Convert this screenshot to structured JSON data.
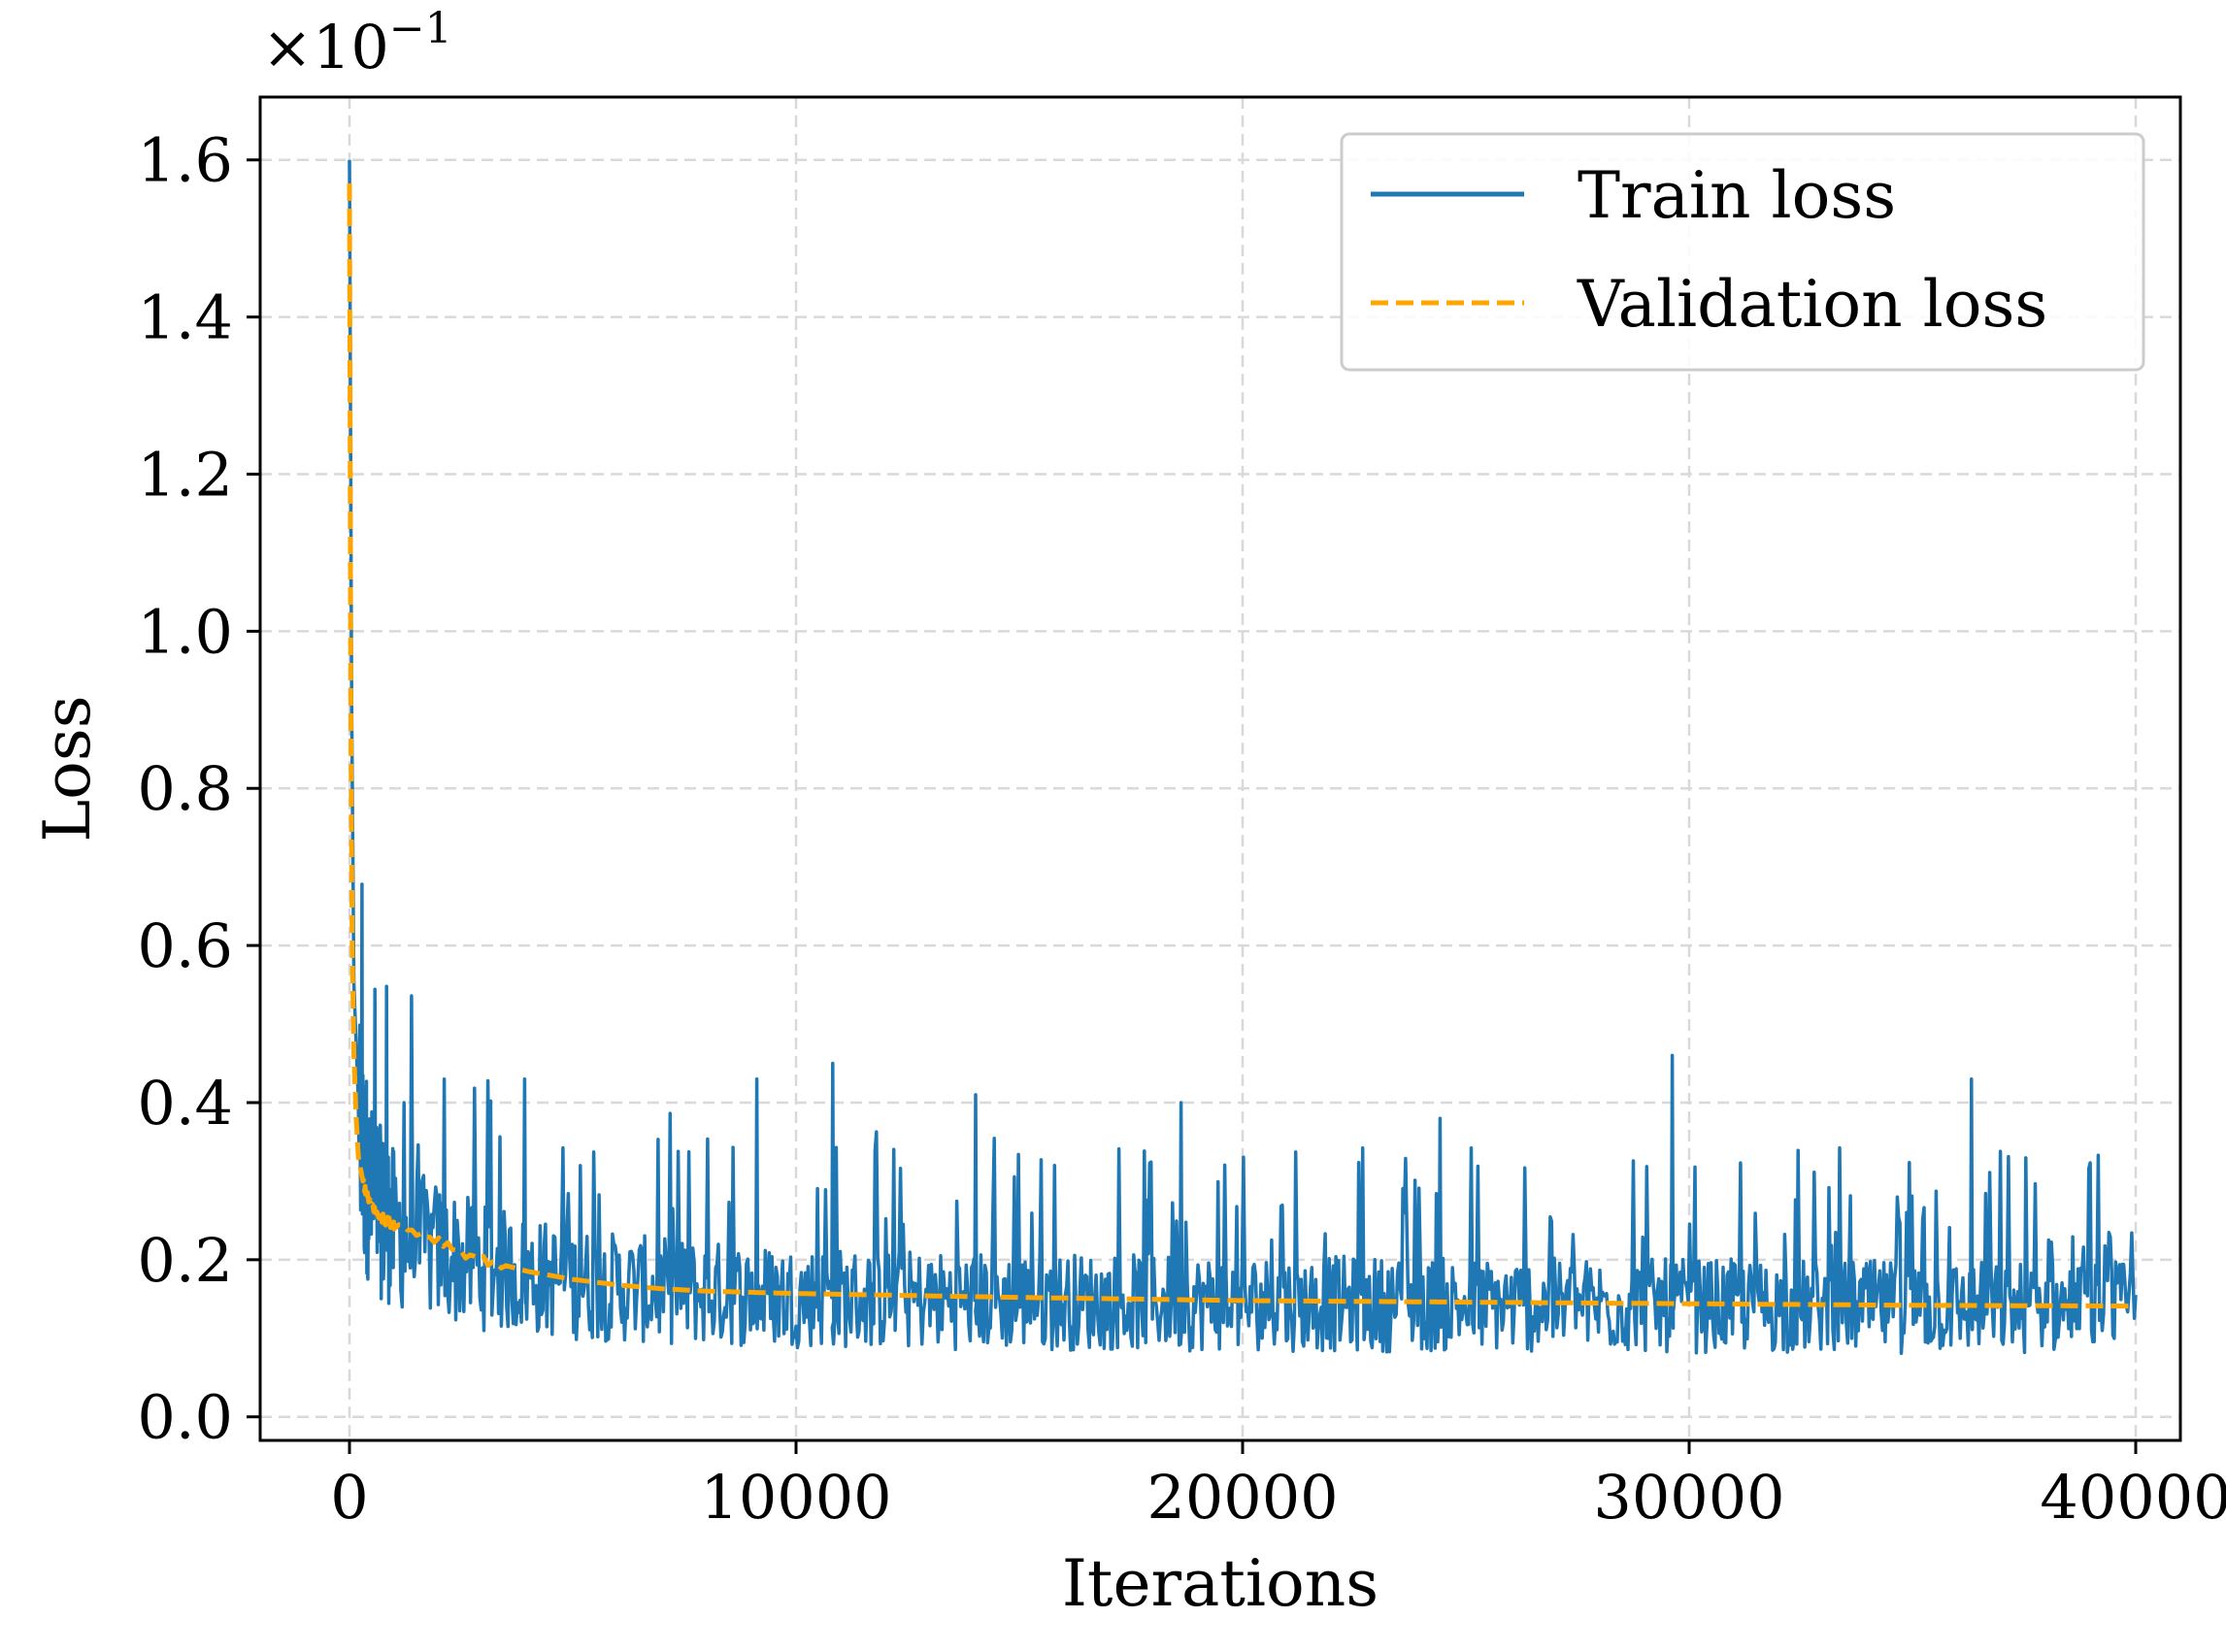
{
  "chart_data": {
    "type": "line",
    "title": "",
    "xlabel": "Iterations",
    "ylabel": "Loss",
    "scale_label": "×10",
    "scale_exponent": "−1",
    "xlim": [
      -2000,
      41000
    ],
    "ylim": [
      -0.03,
      1.68
    ],
    "x_ticks": [
      0,
      10000,
      20000,
      30000,
      40000
    ],
    "x_tick_labels": [
      "0",
      "10000",
      "20000",
      "30000",
      "40000"
    ],
    "y_ticks": [
      0.0,
      0.2,
      0.4,
      0.6,
      0.8,
      1.0,
      1.2,
      1.4,
      1.6
    ],
    "y_tick_labels": [
      "0.0",
      "0.2",
      "0.4",
      "0.6",
      "0.8",
      "1.0",
      "1.2",
      "1.4",
      "1.6"
    ],
    "grid": true,
    "legend_position": "top-right",
    "series": [
      {
        "name": "Train loss",
        "color": "#1f77b4",
        "style": "solid",
        "x": [
          0,
          50,
          100,
          200,
          300,
          500,
          700,
          1000,
          1500,
          2000,
          2500,
          3000,
          4000,
          5000,
          6000,
          7000,
          8000,
          9000,
          10000,
          12000,
          14000,
          16000,
          18000,
          20000,
          22000,
          24000,
          26000,
          28000,
          30000,
          32000,
          34000,
          36000,
          38000,
          40000
        ],
        "values": [
          1.6,
          0.9,
          0.55,
          0.4,
          0.33,
          0.28,
          0.26,
          0.24,
          0.22,
          0.21,
          0.2,
          0.19,
          0.18,
          0.17,
          0.165,
          0.16,
          0.158,
          0.155,
          0.153,
          0.15,
          0.148,
          0.147,
          0.146,
          0.145,
          0.144,
          0.143,
          0.142,
          0.142,
          0.141,
          0.141,
          0.14,
          0.14,
          0.139,
          0.139
        ],
        "peaks": [
          {
            "x": 10800,
            "value": 0.45
          },
          {
            "x": 29600,
            "value": 0.46
          },
          {
            "x": 36300,
            "value": 0.43
          },
          {
            "x": 9100,
            "value": 0.43
          },
          {
            "x": 14000,
            "value": 0.41
          },
          {
            "x": 18600,
            "value": 0.4
          },
          {
            "x": 24400,
            "value": 0.38
          },
          {
            "x": 1200,
            "value": 0.4
          },
          {
            "x": 2100,
            "value": 0.43
          },
          {
            "x": 3900,
            "value": 0.43
          }
        ]
      },
      {
        "name": "Validation loss",
        "color": "#ffa500",
        "style": "dashed",
        "x": [
          0,
          30,
          60,
          100,
          150,
          200,
          300,
          400,
          600,
          800,
          1000,
          1500,
          2000,
          2500,
          3000,
          4000,
          5000,
          6000,
          7000,
          8000,
          10000,
          12000,
          15000,
          20000,
          25000,
          30000,
          35000,
          40000
        ],
        "values": [
          1.57,
          0.9,
          0.6,
          0.46,
          0.38,
          0.33,
          0.3,
          0.28,
          0.26,
          0.25,
          0.245,
          0.235,
          0.225,
          0.21,
          0.2,
          0.185,
          0.175,
          0.168,
          0.163,
          0.16,
          0.157,
          0.155,
          0.152,
          0.148,
          0.146,
          0.144,
          0.142,
          0.141
        ]
      }
    ]
  }
}
